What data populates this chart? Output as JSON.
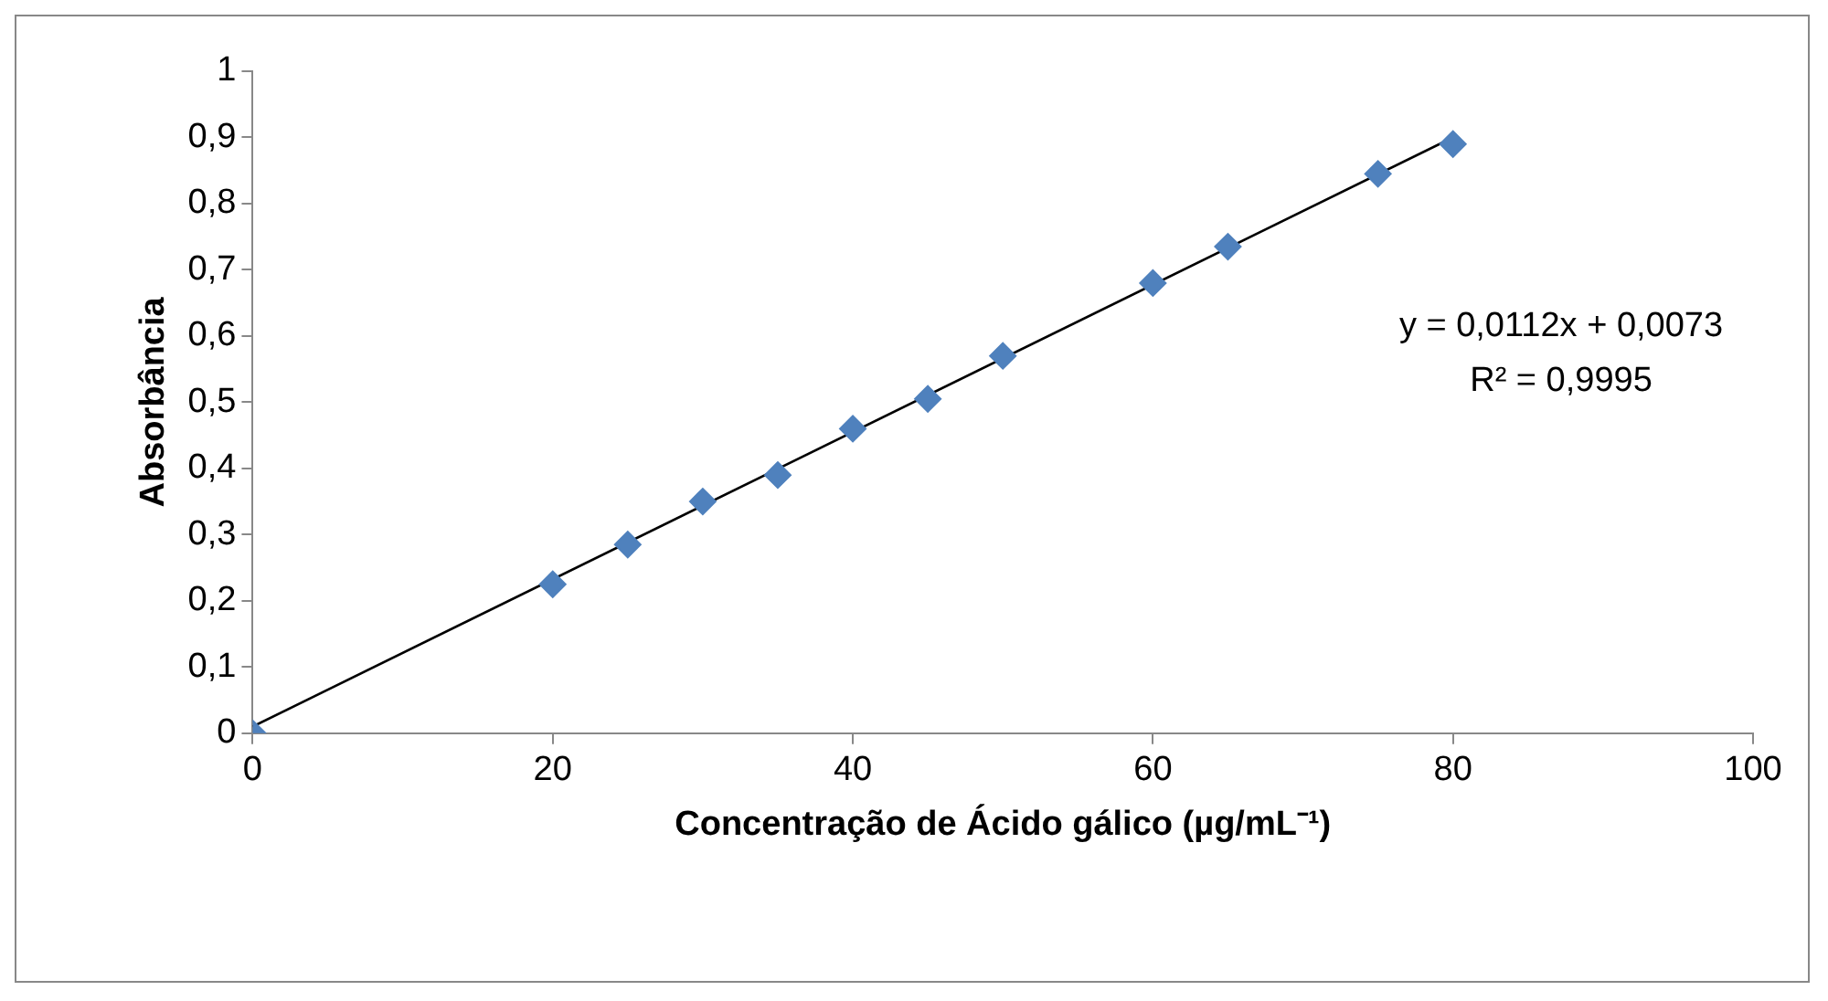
{
  "chart_data": {
    "type": "scatter",
    "xlabel": "Concentração de Ácido gálico (µg/mL⁻¹)",
    "ylabel": "Absorbância",
    "x": [
      0,
      20,
      25,
      30,
      35,
      40,
      45,
      50,
      60,
      65,
      75,
      80
    ],
    "series": [
      {
        "color": "#4f81bd",
        "marker": "diamond",
        "values": [
          0,
          0.225,
          0.285,
          0.35,
          0.39,
          0.46,
          0.505,
          0.57,
          0.68,
          0.735,
          0.845,
          0.89
        ]
      },
      {
        "type": "line",
        "color": "#000000",
        "marker": "none",
        "x": [
          0,
          80
        ],
        "values": [
          0.01,
          0.9
        ]
      }
    ],
    "xlim": [
      0,
      100
    ],
    "xticks": [
      0,
      20,
      40,
      60,
      80,
      100
    ],
    "ylim": [
      0,
      1
    ],
    "yticks": [
      0,
      {
        "value": 0.1,
        "label": "0,1"
      },
      {
        "value": 0.2,
        "label": "0,2"
      },
      {
        "value": 0.3,
        "label": "0,3"
      },
      {
        "value": 0.4,
        "label": "0,4"
      },
      {
        "value": 0.5,
        "label": "0,5"
      },
      {
        "value": 0.6,
        "label": "0,6"
      },
      {
        "value": 0.7,
        "label": "0,7"
      },
      {
        "value": 0.8,
        "label": "0,8"
      },
      {
        "value": 0.9,
        "label": "0,9"
      },
      1
    ],
    "annotations": [
      "y = 0,0112x + 0,0073",
      "R² = 0,9995"
    ],
    "grid": false,
    "legend": false
  }
}
